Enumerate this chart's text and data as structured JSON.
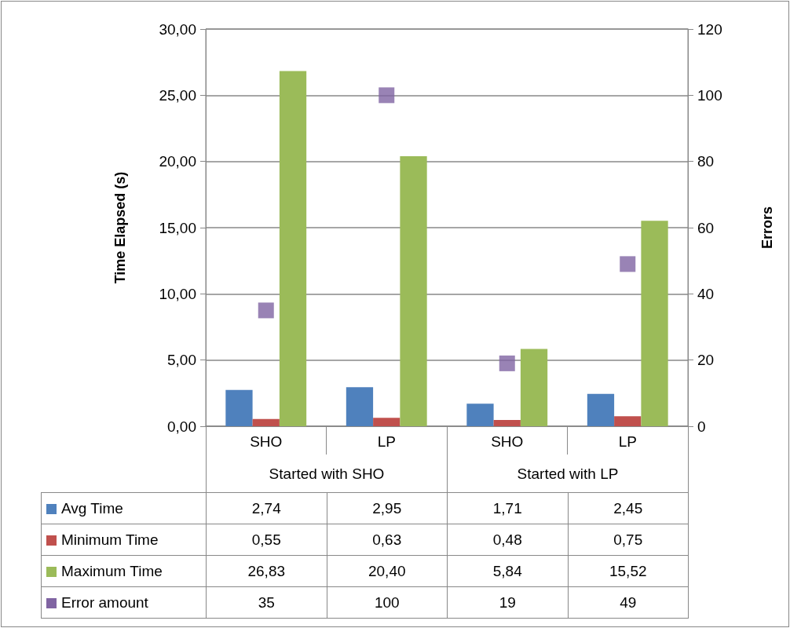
{
  "chart_data": {
    "type": "bar",
    "ylabel": "Time Elapsed (s)",
    "y2label": "Errors",
    "categories": [
      "SHO",
      "LP",
      "SHO",
      "LP"
    ],
    "annotations": [
      "Started with SHO",
      "Started with LP"
    ],
    "series": [
      {
        "name": "Avg Time",
        "color": "#4f81bd",
        "values": [
          2.74,
          2.95,
          1.71,
          2.45
        ],
        "value_labels": [
          "2,74",
          "2,95",
          "1,71",
          "2,45"
        ]
      },
      {
        "name": "Minimum Time",
        "color": "#c0504d",
        "values": [
          0.55,
          0.63,
          0.48,
          0.75
        ],
        "value_labels": [
          "0,55",
          "0,63",
          "0,48",
          "0,75"
        ]
      },
      {
        "name": "Maximum Time",
        "color": "#9bbb59",
        "values": [
          26.83,
          20.4,
          5.84,
          15.52
        ],
        "value_labels": [
          "26,83",
          "20,40",
          "5,84",
          "15,52"
        ]
      },
      {
        "name": "Error amount",
        "color": "#8064a2",
        "type": "scatter",
        "axis": "y2",
        "marker": "square",
        "values": [
          35,
          100,
          19,
          49
        ],
        "value_labels": [
          "35",
          "100",
          "19",
          "49"
        ]
      }
    ],
    "ylim": [
      0,
      30
    ],
    "yticks": [
      {
        "value": 0,
        "label": "0,00"
      },
      {
        "value": 5,
        "label": "5,00"
      },
      {
        "value": 10,
        "label": "10,00"
      },
      {
        "value": 15,
        "label": "15,00"
      },
      {
        "value": 20,
        "label": "20,00"
      },
      {
        "value": 25,
        "label": "25,00"
      },
      {
        "value": 30,
        "label": "30,00"
      }
    ],
    "y2lim": [
      0,
      120
    ],
    "y2ticks": [
      0,
      20,
      40,
      60,
      80,
      100,
      120
    ],
    "grid": "y",
    "legend": "bottom"
  }
}
